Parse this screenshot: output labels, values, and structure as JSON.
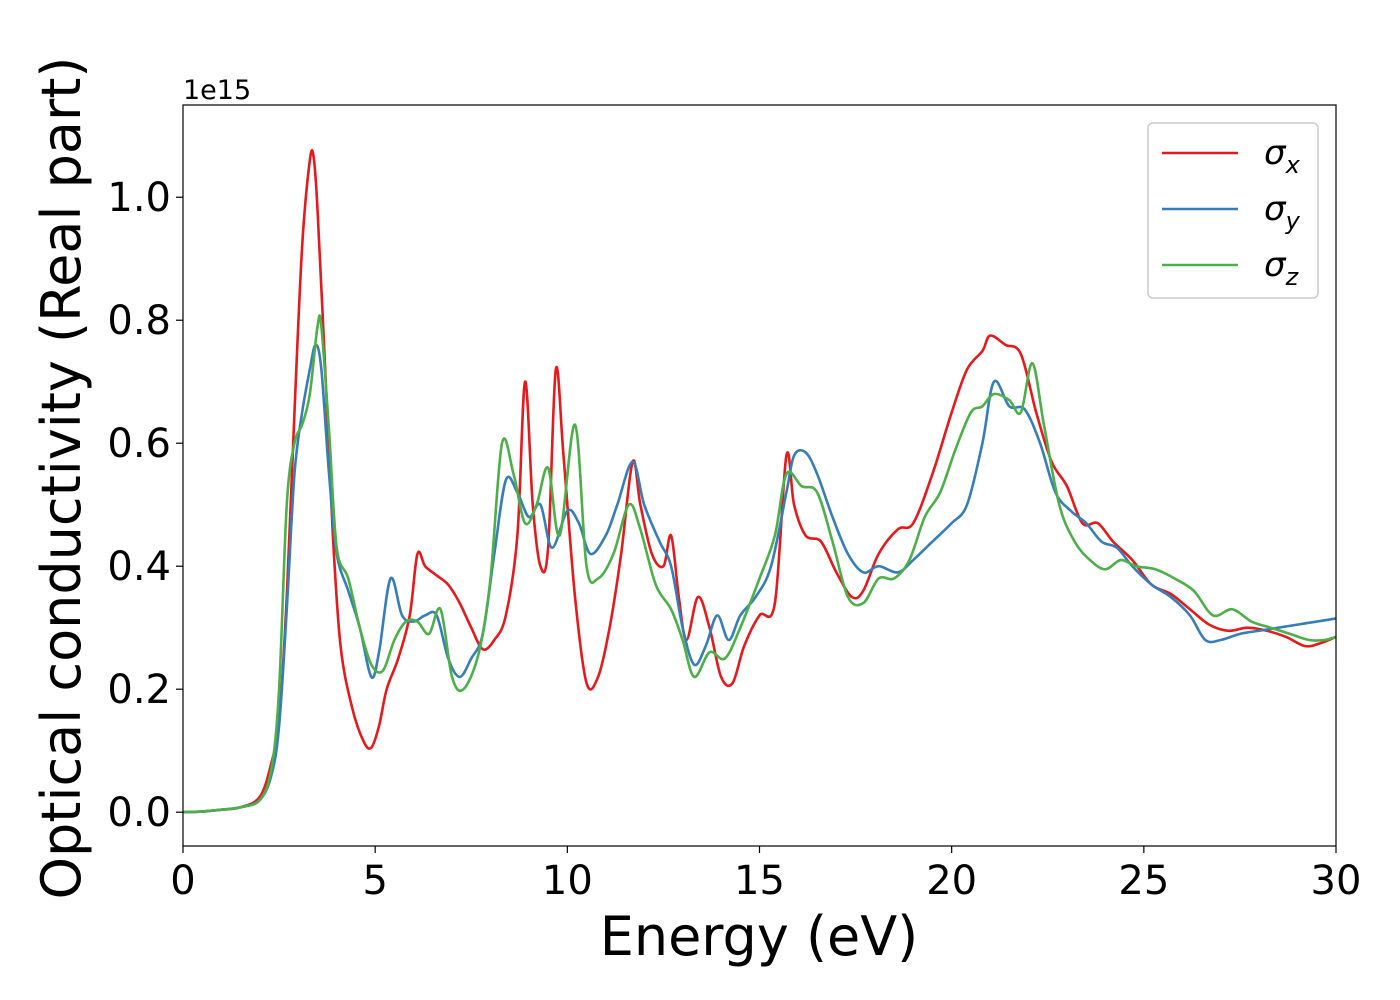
{
  "chart_data": {
    "type": "line",
    "xlabel": "Energy (eV)",
    "ylabel": "Optical conductivity (Real part)",
    "y_offset_label": "1e15",
    "xlim": [
      0,
      30
    ],
    "ylim": [
      -0.055,
      1.15
    ],
    "x_ticks": [
      0,
      5,
      10,
      15,
      20,
      25,
      30
    ],
    "y_ticks": [
      0.0,
      0.2,
      0.4,
      0.6,
      0.8,
      1.0
    ],
    "x_tick_labels": [
      "0",
      "5",
      "10",
      "15",
      "20",
      "25",
      "30"
    ],
    "y_tick_labels": [
      "0.0",
      "0.2",
      "0.4",
      "0.6",
      "0.8",
      "1.0"
    ],
    "grid": false,
    "legend_position": "top-right",
    "series": [
      {
        "name": "σx",
        "subscript": "x",
        "color": "#e41a1c",
        "points": [
          [
            0,
            0
          ],
          [
            0.5,
            0.001
          ],
          [
            1,
            0.004
          ],
          [
            1.5,
            0.008
          ],
          [
            2,
            0.025
          ],
          [
            2.3,
            0.08
          ],
          [
            2.5,
            0.15
          ],
          [
            2.7,
            0.35
          ],
          [
            2.9,
            0.65
          ],
          [
            3.1,
            0.92
          ],
          [
            3.3,
            1.06
          ],
          [
            3.4,
            1.065
          ],
          [
            3.5,
            0.98
          ],
          [
            3.7,
            0.72
          ],
          [
            3.9,
            0.45
          ],
          [
            4.1,
            0.27
          ],
          [
            4.4,
            0.17
          ],
          [
            4.7,
            0.115
          ],
          [
            4.9,
            0.105
          ],
          [
            5.1,
            0.14
          ],
          [
            5.3,
            0.2
          ],
          [
            5.6,
            0.25
          ],
          [
            5.9,
            0.32
          ],
          [
            6.1,
            0.42
          ],
          [
            6.3,
            0.4
          ],
          [
            6.6,
            0.385
          ],
          [
            6.9,
            0.37
          ],
          [
            7.2,
            0.34
          ],
          [
            7.5,
            0.3
          ],
          [
            7.8,
            0.265
          ],
          [
            8.1,
            0.28
          ],
          [
            8.4,
            0.32
          ],
          [
            8.7,
            0.45
          ],
          [
            8.9,
            0.7
          ],
          [
            9.1,
            0.5
          ],
          [
            9.3,
            0.4
          ],
          [
            9.5,
            0.43
          ],
          [
            9.7,
            0.72
          ],
          [
            9.9,
            0.58
          ],
          [
            10.2,
            0.35
          ],
          [
            10.5,
            0.21
          ],
          [
            10.8,
            0.22
          ],
          [
            11.1,
            0.3
          ],
          [
            11.4,
            0.42
          ],
          [
            11.7,
            0.57
          ],
          [
            11.9,
            0.5
          ],
          [
            12.2,
            0.42
          ],
          [
            12.5,
            0.4
          ],
          [
            12.7,
            0.45
          ],
          [
            12.9,
            0.35
          ],
          [
            13.1,
            0.28
          ],
          [
            13.4,
            0.35
          ],
          [
            13.7,
            0.3
          ],
          [
            14.0,
            0.22
          ],
          [
            14.3,
            0.21
          ],
          [
            14.6,
            0.27
          ],
          [
            15.0,
            0.32
          ],
          [
            15.4,
            0.34
          ],
          [
            15.7,
            0.58
          ],
          [
            15.9,
            0.5
          ],
          [
            16.2,
            0.45
          ],
          [
            16.6,
            0.44
          ],
          [
            17.0,
            0.39
          ],
          [
            17.4,
            0.35
          ],
          [
            17.7,
            0.36
          ],
          [
            18.1,
            0.42
          ],
          [
            18.6,
            0.46
          ],
          [
            19.0,
            0.47
          ],
          [
            19.5,
            0.55
          ],
          [
            20.0,
            0.65
          ],
          [
            20.4,
            0.72
          ],
          [
            20.8,
            0.75
          ],
          [
            21.0,
            0.775
          ],
          [
            21.4,
            0.76
          ],
          [
            21.8,
            0.745
          ],
          [
            22.2,
            0.65
          ],
          [
            22.6,
            0.57
          ],
          [
            23.0,
            0.53
          ],
          [
            23.4,
            0.47
          ],
          [
            23.8,
            0.47
          ],
          [
            24.2,
            0.44
          ],
          [
            24.7,
            0.41
          ],
          [
            25.2,
            0.37
          ],
          [
            25.7,
            0.355
          ],
          [
            26.2,
            0.33
          ],
          [
            26.7,
            0.305
          ],
          [
            27.2,
            0.295
          ],
          [
            27.7,
            0.3
          ],
          [
            28.2,
            0.295
          ],
          [
            28.7,
            0.285
          ],
          [
            29.2,
            0.27
          ],
          [
            29.6,
            0.275
          ],
          [
            30,
            0.285
          ]
        ]
      },
      {
        "name": "σy",
        "subscript": "y",
        "color": "#377eb8",
        "points": [
          [
            0,
            0
          ],
          [
            0.5,
            0.001
          ],
          [
            1,
            0.004
          ],
          [
            1.5,
            0.008
          ],
          [
            2,
            0.02
          ],
          [
            2.3,
            0.06
          ],
          [
            2.5,
            0.14
          ],
          [
            2.7,
            0.33
          ],
          [
            2.9,
            0.55
          ],
          [
            3.1,
            0.65
          ],
          [
            3.3,
            0.72
          ],
          [
            3.45,
            0.76
          ],
          [
            3.6,
            0.72
          ],
          [
            3.8,
            0.55
          ],
          [
            4.0,
            0.42
          ],
          [
            4.3,
            0.36
          ],
          [
            4.6,
            0.3
          ],
          [
            4.9,
            0.22
          ],
          [
            5.1,
            0.26
          ],
          [
            5.4,
            0.38
          ],
          [
            5.7,
            0.32
          ],
          [
            6.0,
            0.31
          ],
          [
            6.3,
            0.32
          ],
          [
            6.6,
            0.32
          ],
          [
            6.9,
            0.25
          ],
          [
            7.2,
            0.22
          ],
          [
            7.5,
            0.25
          ],
          [
            7.8,
            0.29
          ],
          [
            8.1,
            0.42
          ],
          [
            8.4,
            0.54
          ],
          [
            8.7,
            0.52
          ],
          [
            9.0,
            0.48
          ],
          [
            9.3,
            0.5
          ],
          [
            9.6,
            0.43
          ],
          [
            10.0,
            0.49
          ],
          [
            10.3,
            0.47
          ],
          [
            10.6,
            0.42
          ],
          [
            11.0,
            0.45
          ],
          [
            11.3,
            0.5
          ],
          [
            11.7,
            0.57
          ],
          [
            12.0,
            0.5
          ],
          [
            12.4,
            0.44
          ],
          [
            12.7,
            0.4
          ],
          [
            13.0,
            0.3
          ],
          [
            13.3,
            0.24
          ],
          [
            13.6,
            0.27
          ],
          [
            13.9,
            0.32
          ],
          [
            14.2,
            0.28
          ],
          [
            14.5,
            0.32
          ],
          [
            14.9,
            0.35
          ],
          [
            15.3,
            0.4
          ],
          [
            15.7,
            0.52
          ],
          [
            15.9,
            0.58
          ],
          [
            16.2,
            0.585
          ],
          [
            16.5,
            0.55
          ],
          [
            16.9,
            0.48
          ],
          [
            17.3,
            0.42
          ],
          [
            17.7,
            0.39
          ],
          [
            18.1,
            0.4
          ],
          [
            18.6,
            0.39
          ],
          [
            19.0,
            0.41
          ],
          [
            19.5,
            0.44
          ],
          [
            20.0,
            0.47
          ],
          [
            20.4,
            0.5
          ],
          [
            20.8,
            0.6
          ],
          [
            21.1,
            0.7
          ],
          [
            21.5,
            0.66
          ],
          [
            21.9,
            0.655
          ],
          [
            22.3,
            0.6
          ],
          [
            22.7,
            0.52
          ],
          [
            23.1,
            0.49
          ],
          [
            23.5,
            0.47
          ],
          [
            23.9,
            0.44
          ],
          [
            24.3,
            0.43
          ],
          [
            24.7,
            0.4
          ],
          [
            25.2,
            0.37
          ],
          [
            25.7,
            0.35
          ],
          [
            26.2,
            0.32
          ],
          [
            26.6,
            0.28
          ],
          [
            27.0,
            0.28
          ],
          [
            27.5,
            0.29
          ],
          [
            28.0,
            0.295
          ],
          [
            28.5,
            0.3
          ],
          [
            29.0,
            0.305
          ],
          [
            29.5,
            0.31
          ],
          [
            30,
            0.315
          ]
        ]
      },
      {
        "name": "σz",
        "subscript": "z",
        "color": "#4daf4a",
        "points": [
          [
            0,
            0
          ],
          [
            0.5,
            0.001
          ],
          [
            1,
            0.004
          ],
          [
            1.5,
            0.008
          ],
          [
            2,
            0.02
          ],
          [
            2.3,
            0.07
          ],
          [
            2.5,
            0.2
          ],
          [
            2.7,
            0.5
          ],
          [
            2.9,
            0.6
          ],
          [
            3.1,
            0.63
          ],
          [
            3.3,
            0.68
          ],
          [
            3.5,
            0.79
          ],
          [
            3.6,
            0.79
          ],
          [
            3.8,
            0.62
          ],
          [
            4.0,
            0.43
          ],
          [
            4.3,
            0.38
          ],
          [
            4.6,
            0.3
          ],
          [
            4.9,
            0.24
          ],
          [
            5.2,
            0.23
          ],
          [
            5.5,
            0.28
          ],
          [
            5.8,
            0.31
          ],
          [
            6.1,
            0.31
          ],
          [
            6.4,
            0.29
          ],
          [
            6.7,
            0.33
          ],
          [
            7.0,
            0.22
          ],
          [
            7.3,
            0.2
          ],
          [
            7.7,
            0.26
          ],
          [
            8.0,
            0.38
          ],
          [
            8.3,
            0.6
          ],
          [
            8.6,
            0.55
          ],
          [
            8.9,
            0.47
          ],
          [
            9.2,
            0.5
          ],
          [
            9.5,
            0.56
          ],
          [
            9.8,
            0.45
          ],
          [
            10.2,
            0.63
          ],
          [
            10.5,
            0.4
          ],
          [
            10.8,
            0.38
          ],
          [
            11.2,
            0.42
          ],
          [
            11.6,
            0.5
          ],
          [
            11.9,
            0.46
          ],
          [
            12.3,
            0.37
          ],
          [
            12.7,
            0.33
          ],
          [
            13.0,
            0.28
          ],
          [
            13.3,
            0.22
          ],
          [
            13.7,
            0.26
          ],
          [
            14.1,
            0.25
          ],
          [
            14.5,
            0.3
          ],
          [
            15.0,
            0.38
          ],
          [
            15.4,
            0.45
          ],
          [
            15.7,
            0.55
          ],
          [
            16.1,
            0.53
          ],
          [
            16.5,
            0.52
          ],
          [
            16.9,
            0.44
          ],
          [
            17.3,
            0.35
          ],
          [
            17.7,
            0.34
          ],
          [
            18.1,
            0.38
          ],
          [
            18.5,
            0.38
          ],
          [
            18.9,
            0.41
          ],
          [
            19.3,
            0.48
          ],
          [
            19.7,
            0.52
          ],
          [
            20.1,
            0.59
          ],
          [
            20.5,
            0.65
          ],
          [
            20.8,
            0.66
          ],
          [
            21.1,
            0.68
          ],
          [
            21.5,
            0.67
          ],
          [
            21.8,
            0.65
          ],
          [
            22.1,
            0.73
          ],
          [
            22.4,
            0.63
          ],
          [
            22.8,
            0.5
          ],
          [
            23.2,
            0.44
          ],
          [
            23.6,
            0.41
          ],
          [
            24.0,
            0.395
          ],
          [
            24.4,
            0.41
          ],
          [
            24.8,
            0.4
          ],
          [
            25.3,
            0.395
          ],
          [
            25.8,
            0.38
          ],
          [
            26.3,
            0.36
          ],
          [
            26.8,
            0.32
          ],
          [
            27.3,
            0.33
          ],
          [
            27.8,
            0.31
          ],
          [
            28.3,
            0.3
          ],
          [
            28.8,
            0.29
          ],
          [
            29.3,
            0.28
          ],
          [
            29.7,
            0.28
          ],
          [
            30,
            0.285
          ]
        ]
      }
    ]
  }
}
